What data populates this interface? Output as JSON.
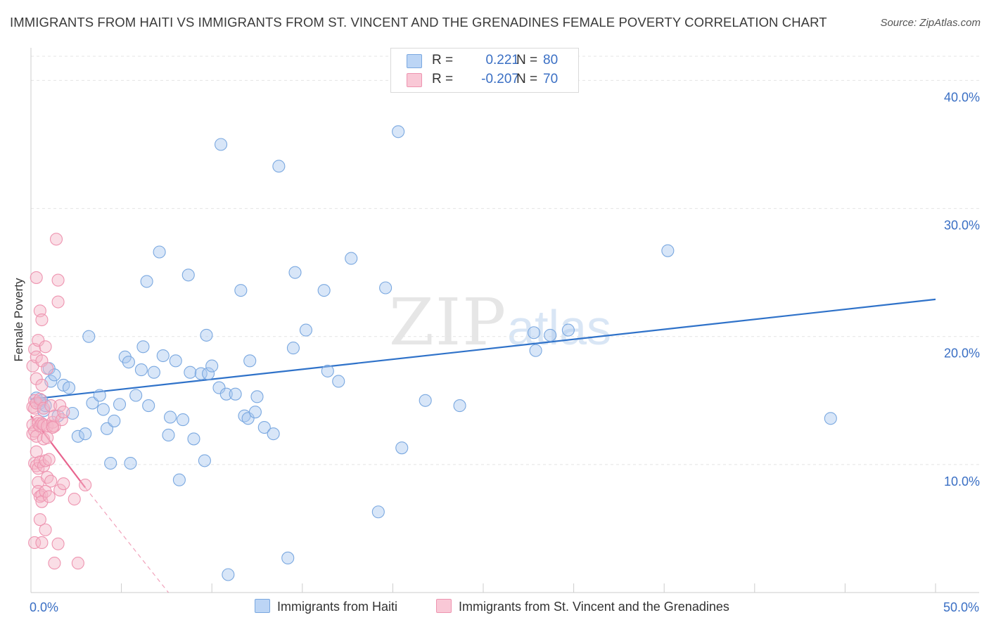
{
  "title": "IMMIGRANTS FROM HAITI VS IMMIGRANTS FROM ST. VINCENT AND THE GRENADINES FEMALE POVERTY CORRELATION CHART",
  "source": "Source: ZipAtlas.com",
  "watermark": {
    "zip": "ZIP",
    "atlas": "atlas"
  },
  "colors": {
    "haiti": "#a8c8f0",
    "haiti_line": "#2f72c9",
    "svg": "#f5b6c8",
    "svg_line": "#e8648e",
    "tick_text": "#3a6fc4",
    "grid": "#e4e4e4"
  },
  "stats": [
    {
      "r_label": "R =",
      "r_value": "0.221",
      "n_label": "N =",
      "n_value": "80"
    },
    {
      "r_label": "R =",
      "r_value": "-0.207",
      "n_label": "N =",
      "n_value": "70"
    }
  ],
  "chart_data": {
    "type": "scatter",
    "title": "IMMIGRANTS FROM HAITI VS IMMIGRANTS FROM ST. VINCENT AND THE GRENADINES FEMALE POVERTY CORRELATION CHART",
    "xlabel": "",
    "ylabel": "Female Poverty",
    "xlim": [
      0,
      50
    ],
    "ylim": [
      0,
      42
    ],
    "x_tick_labels": [
      {
        "value": 0,
        "label": "0.0%"
      },
      {
        "value": 50,
        "label": "50.0%"
      }
    ],
    "y_ticks": [
      {
        "value": 10,
        "label": "10.0%"
      },
      {
        "value": 20,
        "label": "20.0%"
      },
      {
        "value": 30,
        "label": "30.0%"
      },
      {
        "value": 40,
        "label": "40.0%"
      }
    ],
    "x_minor_ticks": [
      0,
      5,
      10,
      15,
      20,
      25,
      30,
      35,
      40,
      45,
      50
    ],
    "grid": true,
    "series": [
      {
        "name": "Immigrants from Haiti",
        "key": "haiti",
        "R": 0.221,
        "N": 80,
        "trend": {
          "x0": 0,
          "y0": 15.1,
          "x1": 50,
          "y1": 22.9
        },
        "points": [
          [
            0.3,
            15.2
          ],
          [
            0.5,
            14.8
          ],
          [
            0.6,
            15.0
          ],
          [
            0.7,
            14.2
          ],
          [
            0.8,
            14.6
          ],
          [
            1.0,
            17.5
          ],
          [
            1.1,
            16.5
          ],
          [
            1.3,
            17.0
          ],
          [
            1.5,
            13.8
          ],
          [
            1.8,
            16.2
          ],
          [
            2.1,
            16.0
          ],
          [
            2.3,
            14.0
          ],
          [
            2.6,
            12.2
          ],
          [
            3.0,
            12.4
          ],
          [
            3.2,
            20.0
          ],
          [
            3.4,
            14.8
          ],
          [
            3.8,
            15.4
          ],
          [
            4.0,
            14.3
          ],
          [
            4.2,
            12.8
          ],
          [
            4.4,
            10.1
          ],
          [
            4.6,
            13.4
          ],
          [
            4.9,
            14.7
          ],
          [
            5.2,
            18.4
          ],
          [
            5.4,
            18.0
          ],
          [
            5.5,
            10.1
          ],
          [
            5.8,
            15.4
          ],
          [
            6.1,
            17.4
          ],
          [
            6.2,
            19.2
          ],
          [
            6.4,
            24.3
          ],
          [
            6.5,
            14.6
          ],
          [
            6.8,
            17.2
          ],
          [
            7.1,
            26.6
          ],
          [
            7.3,
            18.5
          ],
          [
            7.6,
            12.3
          ],
          [
            7.7,
            13.7
          ],
          [
            8.0,
            18.1
          ],
          [
            8.2,
            8.8
          ],
          [
            8.4,
            13.5
          ],
          [
            8.7,
            24.8
          ],
          [
            8.8,
            17.2
          ],
          [
            9.0,
            12.0
          ],
          [
            9.4,
            17.1
          ],
          [
            9.6,
            10.3
          ],
          [
            9.7,
            20.1
          ],
          [
            9.8,
            17.1
          ],
          [
            10.0,
            17.7
          ],
          [
            10.4,
            16.0
          ],
          [
            10.5,
            35.0
          ],
          [
            10.8,
            15.5
          ],
          [
            10.9,
            1.4
          ],
          [
            11.3,
            15.5
          ],
          [
            11.6,
            23.6
          ],
          [
            11.8,
            13.8
          ],
          [
            12.0,
            13.6
          ],
          [
            12.1,
            18.1
          ],
          [
            12.4,
            14.1
          ],
          [
            12.5,
            15.3
          ],
          [
            12.9,
            12.9
          ],
          [
            13.4,
            12.4
          ],
          [
            13.7,
            33.3
          ],
          [
            14.2,
            2.7
          ],
          [
            14.5,
            19.1
          ],
          [
            14.6,
            25.0
          ],
          [
            15.2,
            20.5
          ],
          [
            16.2,
            23.6
          ],
          [
            16.4,
            17.3
          ],
          [
            17.0,
            16.5
          ],
          [
            17.7,
            26.1
          ],
          [
            19.2,
            6.3
          ],
          [
            19.6,
            23.8
          ],
          [
            20.3,
            36.0
          ],
          [
            20.5,
            11.3
          ],
          [
            21.8,
            15.0
          ],
          [
            23.7,
            14.6
          ],
          [
            27.8,
            20.3
          ],
          [
            27.9,
            18.9
          ],
          [
            28.7,
            20.1
          ],
          [
            29.7,
            20.5
          ],
          [
            35.2,
            26.7
          ],
          [
            44.2,
            13.6
          ]
        ]
      },
      {
        "name": "Immigrants from St. Vincent and the Grenadines",
        "key": "svg",
        "R": -0.207,
        "N": 70,
        "trend": {
          "x0": 0,
          "y0": 13.8,
          "x1": 3.0,
          "y1": 8.2
        },
        "trend_ext": {
          "x0": 3.0,
          "y0": 8.2,
          "x1": 7.6,
          "y1": 0.0
        },
        "points": [
          [
            0.1,
            14.5
          ],
          [
            0.1,
            13.1
          ],
          [
            0.1,
            12.4
          ],
          [
            0.1,
            17.7
          ],
          [
            0.2,
            15.0
          ],
          [
            0.2,
            14.4
          ],
          [
            0.2,
            12.6
          ],
          [
            0.2,
            10.1
          ],
          [
            0.2,
            19.0
          ],
          [
            0.2,
            3.9
          ],
          [
            0.3,
            9.9
          ],
          [
            0.3,
            12.2
          ],
          [
            0.3,
            11.0
          ],
          [
            0.3,
            16.7
          ],
          [
            0.3,
            14.8
          ],
          [
            0.3,
            18.4
          ],
          [
            0.3,
            24.6
          ],
          [
            0.4,
            13.4
          ],
          [
            0.4,
            8.6
          ],
          [
            0.4,
            7.9
          ],
          [
            0.4,
            19.7
          ],
          [
            0.4,
            13.2
          ],
          [
            0.4,
            9.7
          ],
          [
            0.5,
            5.7
          ],
          [
            0.5,
            10.2
          ],
          [
            0.5,
            13.0
          ],
          [
            0.5,
            15.1
          ],
          [
            0.5,
            22.0
          ],
          [
            0.5,
            7.5
          ],
          [
            0.6,
            18.1
          ],
          [
            0.6,
            21.3
          ],
          [
            0.6,
            3.9
          ],
          [
            0.6,
            16.2
          ],
          [
            0.6,
            13.2
          ],
          [
            0.6,
            7.6
          ],
          [
            0.6,
            7.1
          ],
          [
            0.7,
            12.0
          ],
          [
            0.7,
            14.4
          ],
          [
            0.7,
            9.9
          ],
          [
            0.7,
            13.1
          ],
          [
            0.8,
            10.3
          ],
          [
            0.8,
            7.9
          ],
          [
            0.8,
            19.2
          ],
          [
            0.8,
            4.9
          ],
          [
            0.9,
            13.0
          ],
          [
            0.9,
            9.0
          ],
          [
            0.9,
            12.1
          ],
          [
            0.9,
            17.5
          ],
          [
            1.0,
            10.4
          ],
          [
            1.0,
            7.5
          ],
          [
            1.1,
            8.7
          ],
          [
            1.1,
            14.6
          ],
          [
            1.2,
            13.0
          ],
          [
            1.2,
            13.3
          ],
          [
            1.3,
            13.0
          ],
          [
            1.3,
            13.8
          ],
          [
            1.3,
            2.3
          ],
          [
            1.4,
            27.6
          ],
          [
            1.5,
            24.4
          ],
          [
            1.5,
            22.7
          ],
          [
            1.5,
            3.8
          ],
          [
            1.6,
            14.6
          ],
          [
            1.6,
            8.0
          ],
          [
            1.7,
            13.5
          ],
          [
            1.8,
            14.1
          ],
          [
            1.8,
            8.5
          ],
          [
            2.4,
            7.3
          ],
          [
            2.6,
            2.3
          ],
          [
            3.0,
            8.4
          ],
          [
            1.2,
            12.9
          ]
        ]
      }
    ]
  },
  "legend": [
    {
      "label": "Immigrants from Haiti"
    },
    {
      "label": "Immigrants from St. Vincent and the Grenadines"
    }
  ]
}
